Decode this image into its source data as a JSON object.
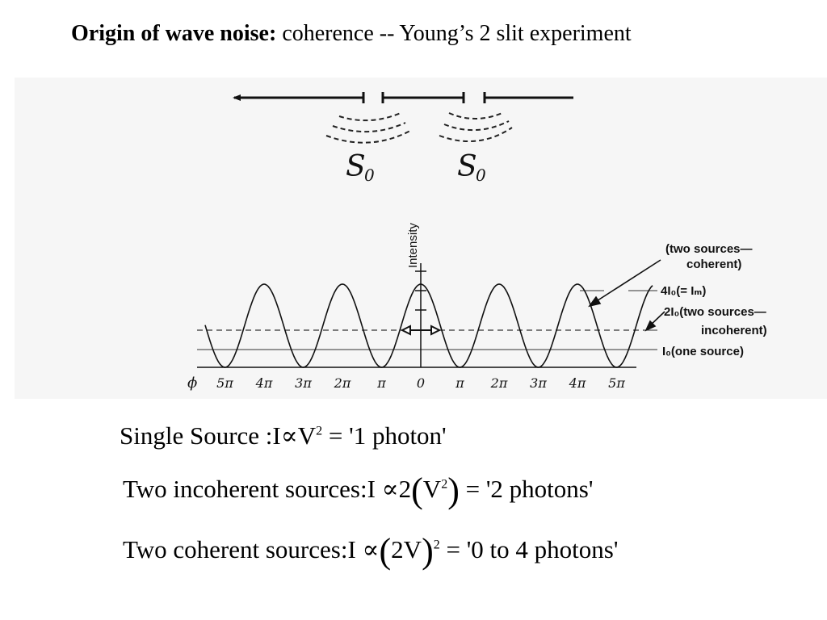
{
  "title": {
    "bold": "Origin of wave noise:",
    "rest": " coherence -- Young’s 2 slit experiment"
  },
  "figure": {
    "source_label": "S",
    "source_sub": "0",
    "axis_label": "Intensity",
    "phase_symbol": "ϕ",
    "ticks": [
      "5π",
      "4π",
      "3π",
      "2π",
      "π",
      "0",
      "π",
      "2π",
      "3π",
      "4π",
      "5π"
    ],
    "ann_coherent_1": "(two sources—",
    "ann_coherent_2": "coherent)",
    "ann_4I0": "4I₀(= Iₘ)",
    "ann_2I0": "2I₀(two sources—",
    "ann_2I0_2": "incoherent)",
    "ann_I0": "I₀(one source)"
  },
  "equations": {
    "line1": {
      "a": "Single  Source :I",
      "prop": "∝",
      "b": "V",
      "exp": "2",
      "c": " = '1 photon'"
    },
    "line2": {
      "a": "Two  incoherent sources:I ",
      "prop": "∝",
      "b": "2",
      "lp": "(",
      "c": "V",
      "exp": "2",
      "rp": ")",
      "d": " = '2 photons'"
    },
    "line3": {
      "a": "Two  coherent sources:I ",
      "prop": "∝",
      "lp": "(",
      "b": "2V",
      "rp": ")",
      "exp": "2",
      "c": " = '0 to 4  photons'"
    }
  }
}
